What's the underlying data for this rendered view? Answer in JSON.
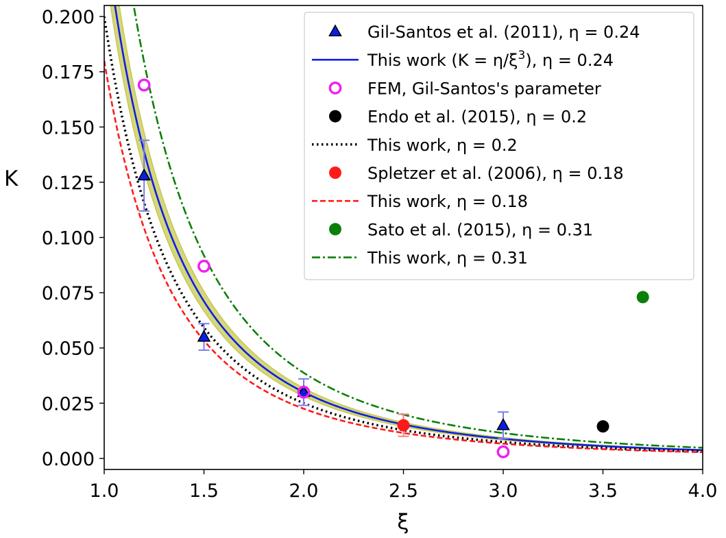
{
  "chart_data": {
    "type": "scatter",
    "xlabel": "ξ",
    "ylabel": "K",
    "xlim": [
      1.0,
      4.0
    ],
    "ylim": [
      -0.005,
      0.205
    ],
    "xticks": [
      "1.0",
      "1.5",
      "2.0",
      "2.5",
      "3.0",
      "3.5",
      "4.0"
    ],
    "yticks": [
      "0.000",
      "0.025",
      "0.050",
      "0.075",
      "0.100",
      "0.125",
      "0.150",
      "0.175",
      "0.200"
    ],
    "grid": false,
    "legend_position": "top-right",
    "band": {
      "eta_low": 0.225,
      "eta_high": 0.255,
      "color": "#c8c850"
    },
    "series": [
      {
        "name": "Gil-Santos et al. (2011), η = 0.24",
        "kind": "points",
        "marker": "triangle",
        "color": "#0a1fe6",
        "edge": "#000000",
        "x": [
          1.2,
          1.5,
          2.0,
          3.0
        ],
        "y": [
          0.128,
          0.055,
          0.03,
          0.015
        ],
        "err": [
          0.016,
          0.006,
          0.006,
          0.006
        ],
        "err_color": "#7b7bf0"
      },
      {
        "name": "This work (K = η/ξ",
        "name_sup": "3",
        "name_tail": "), η = 0.24",
        "kind": "curve",
        "eta": 0.24,
        "style": "solid",
        "color": "#0a1fe6"
      },
      {
        "name": "FEM, Gil-Santos's parameter",
        "kind": "points",
        "marker": "open-circle",
        "color": "#ee22ee",
        "x": [
          1.2,
          1.5,
          2.0,
          3.0
        ],
        "y": [
          0.169,
          0.087,
          0.03,
          0.003
        ]
      },
      {
        "name": "Endo et al. (2015), η = 0.2",
        "kind": "points",
        "marker": "circle",
        "color": "#000000",
        "x": [
          3.5
        ],
        "y": [
          0.0145
        ]
      },
      {
        "name": "This work, η = 0.2",
        "kind": "curve",
        "eta": 0.2,
        "style": "dotted",
        "color": "#000000"
      },
      {
        "name": "Spletzer et al. (2006), η = 0.18",
        "kind": "points",
        "marker": "circle",
        "color": "#ff1a1a",
        "x": [
          2.5
        ],
        "y": [
          0.015
        ],
        "err": [
          0.005
        ],
        "err_color": "#f08080"
      },
      {
        "name": "This work, η = 0.18",
        "kind": "curve",
        "eta": 0.18,
        "style": "dashed",
        "color": "#ff1a1a"
      },
      {
        "name": "Sato et al. (2015), η = 0.31",
        "kind": "points",
        "marker": "circle",
        "color": "#0a7f0a",
        "x": [
          3.7
        ],
        "y": [
          0.073
        ]
      },
      {
        "name": "This work, η = 0.31",
        "kind": "curve",
        "eta": 0.31,
        "style": "dashdot",
        "color": "#0a7f0a"
      }
    ]
  }
}
